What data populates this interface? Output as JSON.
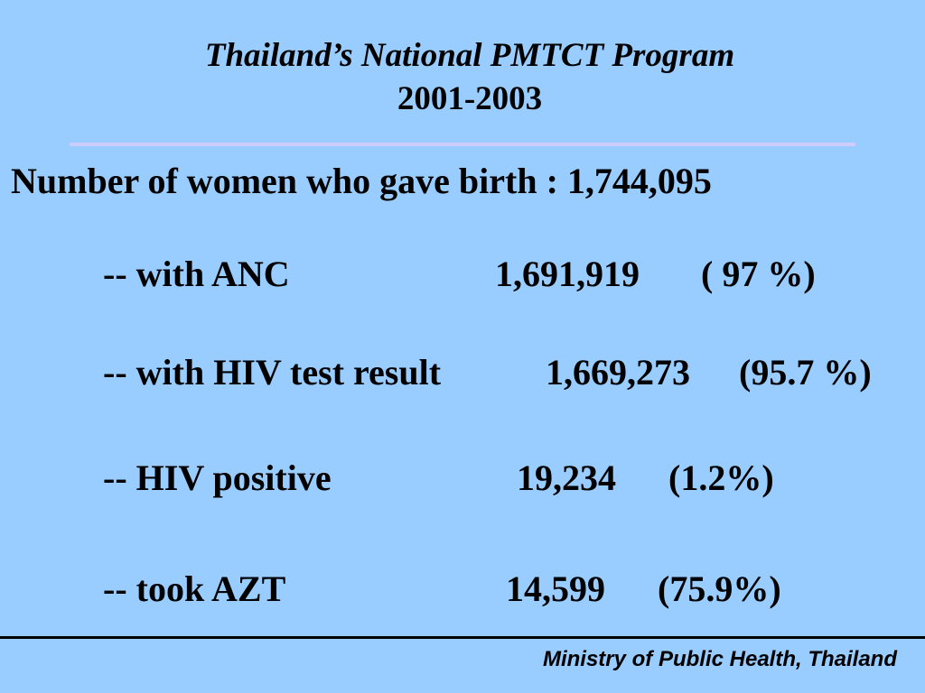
{
  "slide": {
    "title": "Thailand’s National PMTCT Program",
    "subtitle": "2001-2003",
    "summary": "Number of women who gave birth : 1,744,095",
    "rows": [
      {
        "label": "-- with ANC",
        "value": "1,691,919",
        "percent": "( 97 %)"
      },
      {
        "label": "-- with HIV test result",
        "value": "1,669,273",
        "percent": "(95.7 %)"
      },
      {
        "label": "-- HIV positive",
        "value": "19,234",
        "percent": "(1.2%)"
      },
      {
        "label": "-- took AZT",
        "value": "14,599",
        "percent": "(75.9%)"
      }
    ],
    "footer": "Ministry of Public Health, Thailand"
  },
  "colors": {
    "background": "#99ccff",
    "title_rule": "#ccccff",
    "text": "#000000"
  }
}
